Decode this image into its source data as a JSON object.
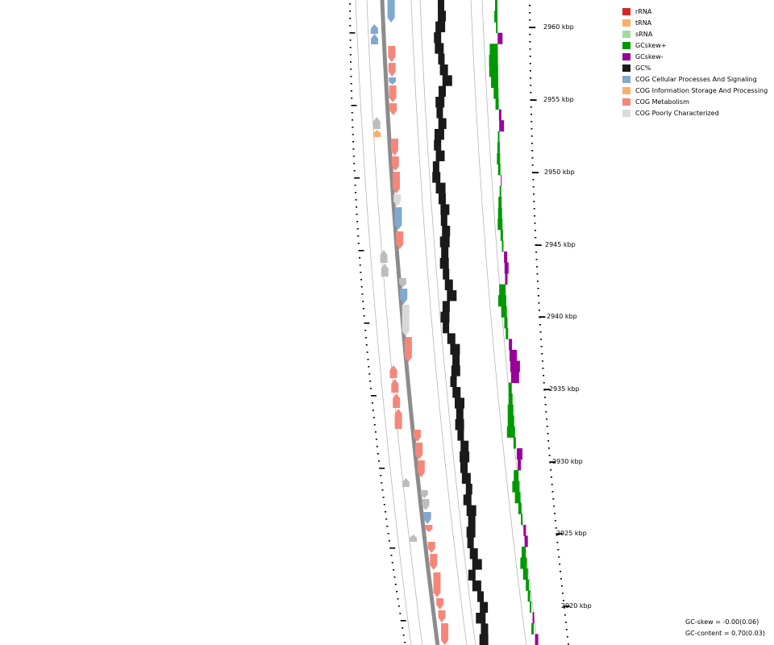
{
  "legend": [
    {
      "label": "rRNA",
      "color": "#d62728"
    },
    {
      "label": "tRNA",
      "color": "#fdae6b"
    },
    {
      "label": "sRNA",
      "color": "#a1d99b"
    },
    {
      "label": "GCskew+",
      "color": "#009900"
    },
    {
      "label": "GCskew-",
      "color": "#990099"
    },
    {
      "label": "GC%",
      "color": "#1a1a1a"
    },
    {
      "label": "COG Cellular Processes And Signaling",
      "color": "#80a8d0"
    },
    {
      "label": "COG Information Storage And Processing",
      "color": "#fdae6b"
    },
    {
      "label": "COG Metabolism",
      "color": "#f5877a"
    },
    {
      "label": "COG Poorly Characterized",
      "color": "#d9d9d9"
    }
  ],
  "ruler": {
    "labels": [
      "2960 kbp",
      "2955 kbp",
      "2950 kbp",
      "2945 kbp",
      "2940 kbp",
      "2935 kbp",
      "2930 kbp",
      "2925 kbp",
      "2920 kbp"
    ]
  },
  "stats": {
    "gc_skew": "GC-skew = -0.00(0.06)",
    "gc_content": "GC-content = 0.70(0.03)"
  },
  "colors": {
    "backbone": "#8c8c8c",
    "track_line": "#b5b5b5",
    "gc_content": "#1a1a1a",
    "skew_pos": "#009900",
    "skew_neg": "#990099",
    "gene_unknown": "#bdbdbd"
  }
}
